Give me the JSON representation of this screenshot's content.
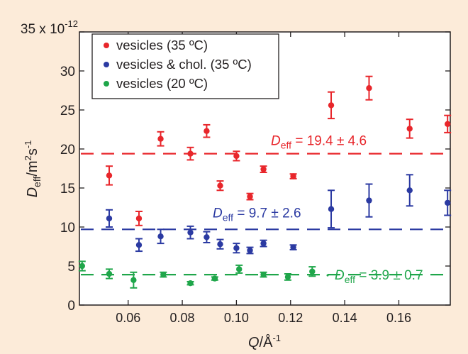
{
  "chart_data": {
    "type": "scatter",
    "xlabel_main": "Q",
    "xlabel_unit": "/Å",
    "xlabel_exp": "-1",
    "ylabel_main": "D",
    "ylabel_sub": "eff",
    "ylabel_unit": "/m",
    "ylabel_exp1": "2",
    "ylabel_s": "s",
    "ylabel_exp2": "-1",
    "ylim": [
      0,
      35
    ],
    "xlim": [
      0.042,
      0.179
    ],
    "y_ticks": [
      0,
      5,
      10,
      15,
      20,
      25,
      30,
      35
    ],
    "y_tick_labels": [
      "0",
      "5",
      "10",
      "15",
      "20",
      "25",
      "30",
      "35 x 10"
    ],
    "y_top_exponent": "-12",
    "x_ticks": [
      0.06,
      0.08,
      0.1,
      0.12,
      0.14,
      0.16
    ],
    "x_tick_labels": [
      "0.06",
      "0.08",
      "0.10",
      "0.12",
      "0.14",
      "0.16"
    ],
    "legend_position": "top-left",
    "series": [
      {
        "name": "vesicles (35 ºC)",
        "color": "#e8262b",
        "points": [
          {
            "x": 0.053,
            "y": 16.6,
            "err": 1.2
          },
          {
            "x": 0.064,
            "y": 11.1,
            "err": 0.9
          },
          {
            "x": 0.072,
            "y": 21.3,
            "err": 0.9
          },
          {
            "x": 0.083,
            "y": 19.4,
            "err": 0.8
          },
          {
            "x": 0.089,
            "y": 22.3,
            "err": 0.8
          },
          {
            "x": 0.094,
            "y": 15.3,
            "err": 0.6
          },
          {
            "x": 0.1,
            "y": 19.1,
            "err": 0.6
          },
          {
            "x": 0.105,
            "y": 13.9,
            "err": 0.4
          },
          {
            "x": 0.11,
            "y": 17.4,
            "err": 0.4
          },
          {
            "x": 0.121,
            "y": 16.5,
            "err": 0.3
          },
          {
            "x": 0.135,
            "y": 25.6,
            "err": 1.7
          },
          {
            "x": 0.149,
            "y": 27.8,
            "err": 1.5
          },
          {
            "x": 0.164,
            "y": 22.6,
            "err": 1.2
          },
          {
            "x": 0.178,
            "y": 23.2,
            "err": 1.1
          }
        ],
        "fit": {
          "y": 19.4,
          "label_main": "D",
          "label_sub": "eff",
          "label_rest": " = 19.4 ± 4.6"
        }
      },
      {
        "name": "vesicles & chol. (35 ºC)",
        "color": "#2b3aa2",
        "points": [
          {
            "x": 0.053,
            "y": 11.1,
            "err": 1.1
          },
          {
            "x": 0.064,
            "y": 7.7,
            "err": 0.8
          },
          {
            "x": 0.072,
            "y": 8.8,
            "err": 0.9
          },
          {
            "x": 0.083,
            "y": 9.3,
            "err": 0.8
          },
          {
            "x": 0.089,
            "y": 8.7,
            "err": 0.7
          },
          {
            "x": 0.094,
            "y": 7.8,
            "err": 0.6
          },
          {
            "x": 0.1,
            "y": 7.3,
            "err": 0.6
          },
          {
            "x": 0.105,
            "y": 7.0,
            "err": 0.4
          },
          {
            "x": 0.11,
            "y": 7.9,
            "err": 0.4
          },
          {
            "x": 0.121,
            "y": 7.4,
            "err": 0.3
          },
          {
            "x": 0.135,
            "y": 12.3,
            "err": 2.4
          },
          {
            "x": 0.149,
            "y": 13.4,
            "err": 2.1
          },
          {
            "x": 0.164,
            "y": 14.7,
            "err": 2.0
          },
          {
            "x": 0.178,
            "y": 13.1,
            "err": 1.6
          }
        ],
        "fit": {
          "y": 9.7,
          "label_main": "D",
          "label_sub": "eff",
          "label_rest": " = 9.7 ± 2.6"
        }
      },
      {
        "name": "vesicles (20 ºC)",
        "color": "#1fa64a",
        "points": [
          {
            "x": 0.043,
            "y": 5.0,
            "err": 0.6
          },
          {
            "x": 0.053,
            "y": 4.0,
            "err": 0.6
          },
          {
            "x": 0.062,
            "y": 3.2,
            "err": 1.0
          },
          {
            "x": 0.073,
            "y": 3.9,
            "err": 0.3
          },
          {
            "x": 0.083,
            "y": 2.8,
            "err": 0.2
          },
          {
            "x": 0.092,
            "y": 3.4,
            "err": 0.2
          },
          {
            "x": 0.101,
            "y": 4.6,
            "err": 0.5
          },
          {
            "x": 0.11,
            "y": 3.9,
            "err": 0.3
          },
          {
            "x": 0.119,
            "y": 3.6,
            "err": 0.4
          },
          {
            "x": 0.128,
            "y": 4.3,
            "err": 0.6
          }
        ],
        "fit": {
          "y": 3.9,
          "label_main": "D",
          "label_sub": "eff",
          "label_rest": " = 3.9 ± 0.7"
        }
      }
    ]
  }
}
